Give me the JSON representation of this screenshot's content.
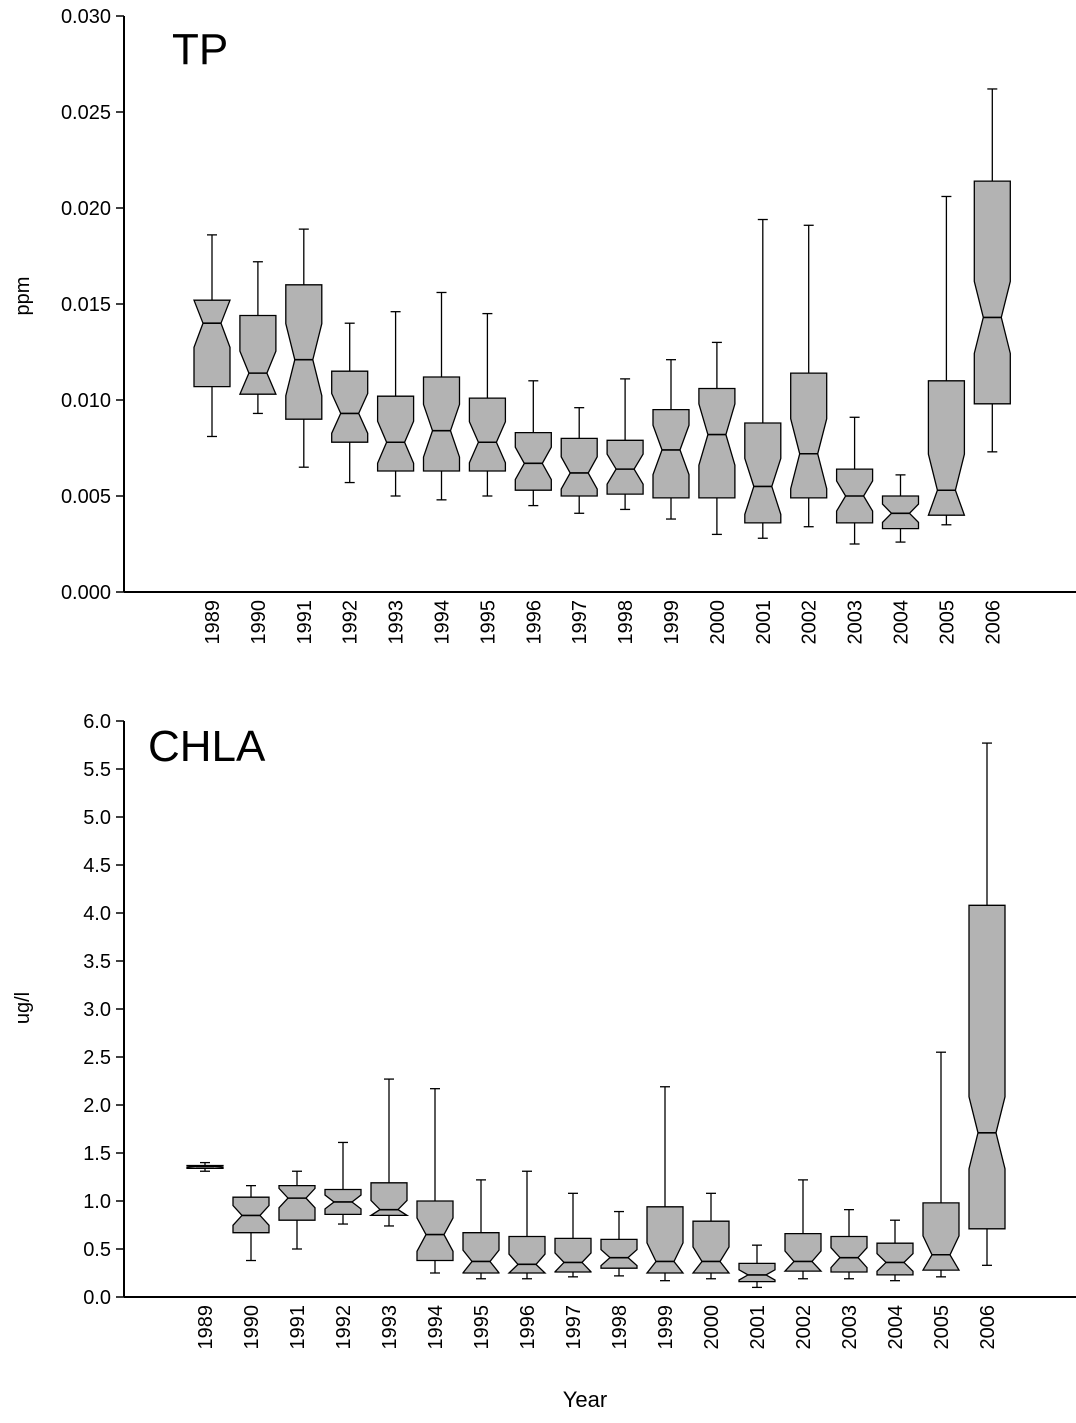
{
  "chart_data": [
    {
      "type": "box",
      "title": "TP",
      "xlabel": "",
      "ylabel": "ppm",
      "ylim": [
        0,
        0.03
      ],
      "yticks": [
        "0.000",
        "0.005",
        "0.010",
        "0.015",
        "0.020",
        "0.025",
        "0.030"
      ],
      "grid": false,
      "notched": true,
      "box_color": "#b3b3b3",
      "categories": [
        "1989",
        "1990",
        "1991",
        "1992",
        "1993",
        "1994",
        "1995",
        "1996",
        "1997",
        "1998",
        "1999",
        "2000",
        "2001",
        "2002",
        "2003",
        "2004",
        "2005",
        "2006"
      ],
      "boxes": [
        {
          "min": 0.0081,
          "q1": 0.0107,
          "median": 0.014,
          "q3": 0.0152,
          "max": 0.0186
        },
        {
          "min": 0.0093,
          "q1": 0.0103,
          "median": 0.0114,
          "q3": 0.0144,
          "max": 0.0172
        },
        {
          "min": 0.0065,
          "q1": 0.009,
          "median": 0.0121,
          "q3": 0.016,
          "max": 0.0189
        },
        {
          "min": 0.0057,
          "q1": 0.0078,
          "median": 0.0093,
          "q3": 0.0115,
          "max": 0.014
        },
        {
          "min": 0.005,
          "q1": 0.0063,
          "median": 0.0078,
          "q3": 0.0102,
          "max": 0.0146
        },
        {
          "min": 0.0048,
          "q1": 0.0063,
          "median": 0.0084,
          "q3": 0.0112,
          "max": 0.0156
        },
        {
          "min": 0.005,
          "q1": 0.0063,
          "median": 0.0078,
          "q3": 0.0101,
          "max": 0.0145
        },
        {
          "min": 0.0045,
          "q1": 0.0053,
          "median": 0.0067,
          "q3": 0.0083,
          "max": 0.011
        },
        {
          "min": 0.0041,
          "q1": 0.005,
          "median": 0.0062,
          "q3": 0.008,
          "max": 0.0096
        },
        {
          "min": 0.0043,
          "q1": 0.0051,
          "median": 0.0064,
          "q3": 0.0079,
          "max": 0.0111
        },
        {
          "min": 0.0038,
          "q1": 0.0049,
          "median": 0.0074,
          "q3": 0.0095,
          "max": 0.0121
        },
        {
          "min": 0.003,
          "q1": 0.0049,
          "median": 0.0082,
          "q3": 0.0106,
          "max": 0.013
        },
        {
          "min": 0.0028,
          "q1": 0.0036,
          "median": 0.0055,
          "q3": 0.0088,
          "max": 0.0194
        },
        {
          "min": 0.0034,
          "q1": 0.0049,
          "median": 0.0072,
          "q3": 0.0114,
          "max": 0.0191
        },
        {
          "min": 0.0025,
          "q1": 0.0036,
          "median": 0.005,
          "q3": 0.0064,
          "max": 0.0091
        },
        {
          "min": 0.0026,
          "q1": 0.0033,
          "median": 0.0041,
          "q3": 0.005,
          "max": 0.0061
        },
        {
          "min": 0.0035,
          "q1": 0.004,
          "median": 0.0053,
          "q3": 0.011,
          "max": 0.0206
        },
        {
          "min": 0.0073,
          "q1": 0.0098,
          "median": 0.0143,
          "q3": 0.0214,
          "max": 0.0262
        }
      ]
    },
    {
      "type": "box",
      "title": "CHLA",
      "xlabel": "Year",
      "ylabel": "ug/l",
      "ylim": [
        0,
        6
      ],
      "yticks": [
        "0.0",
        "0.5",
        "1.0",
        "1.5",
        "2.0",
        "2.5",
        "3.0",
        "3.5",
        "4.0",
        "4.5",
        "5.0",
        "5.5",
        "6.0"
      ],
      "grid": false,
      "notched": true,
      "box_color": "#b3b3b3",
      "categories": [
        "1989",
        "1990",
        "1991",
        "1992",
        "1993",
        "1994",
        "1995",
        "1996",
        "1997",
        "1998",
        "1999",
        "2000",
        "2001",
        "2002",
        "2003",
        "2004",
        "2005",
        "2006"
      ],
      "boxes": [
        {
          "min": 1.31,
          "q1": 1.34,
          "median": 1.36,
          "q3": 1.37,
          "max": 1.4
        },
        {
          "min": 0.38,
          "q1": 0.67,
          "median": 0.85,
          "q3": 1.04,
          "max": 1.16
        },
        {
          "min": 0.5,
          "q1": 0.8,
          "median": 1.03,
          "q3": 1.16,
          "max": 1.31
        },
        {
          "min": 0.76,
          "q1": 0.86,
          "median": 0.99,
          "q3": 1.12,
          "max": 1.61
        },
        {
          "min": 0.74,
          "q1": 0.85,
          "median": 0.91,
          "q3": 1.19,
          "max": 2.27
        },
        {
          "min": 0.25,
          "q1": 0.38,
          "median": 0.65,
          "q3": 1.0,
          "max": 2.17
        },
        {
          "min": 0.19,
          "q1": 0.25,
          "median": 0.37,
          "q3": 0.67,
          "max": 1.22
        },
        {
          "min": 0.19,
          "q1": 0.25,
          "median": 0.34,
          "q3": 0.63,
          "max": 1.31
        },
        {
          "min": 0.21,
          "q1": 0.26,
          "median": 0.36,
          "q3": 0.61,
          "max": 1.08
        },
        {
          "min": 0.22,
          "q1": 0.3,
          "median": 0.41,
          "q3": 0.6,
          "max": 0.89
        },
        {
          "min": 0.17,
          "q1": 0.25,
          "median": 0.37,
          "q3": 0.94,
          "max": 2.19
        },
        {
          "min": 0.19,
          "q1": 0.25,
          "median": 0.37,
          "q3": 0.79,
          "max": 1.08
        },
        {
          "min": 0.1,
          "q1": 0.16,
          "median": 0.23,
          "q3": 0.35,
          "max": 0.54
        },
        {
          "min": 0.19,
          "q1": 0.27,
          "median": 0.37,
          "q3": 0.66,
          "max": 1.22
        },
        {
          "min": 0.19,
          "q1": 0.26,
          "median": 0.41,
          "q3": 0.63,
          "max": 0.91
        },
        {
          "min": 0.17,
          "q1": 0.23,
          "median": 0.36,
          "q3": 0.56,
          "max": 0.8
        },
        {
          "min": 0.21,
          "q1": 0.28,
          "median": 0.44,
          "q3": 0.98,
          "max": 2.55
        },
        {
          "min": 0.33,
          "q1": 0.71,
          "median": 1.71,
          "q3": 4.08,
          "max": 5.77
        }
      ]
    }
  ]
}
